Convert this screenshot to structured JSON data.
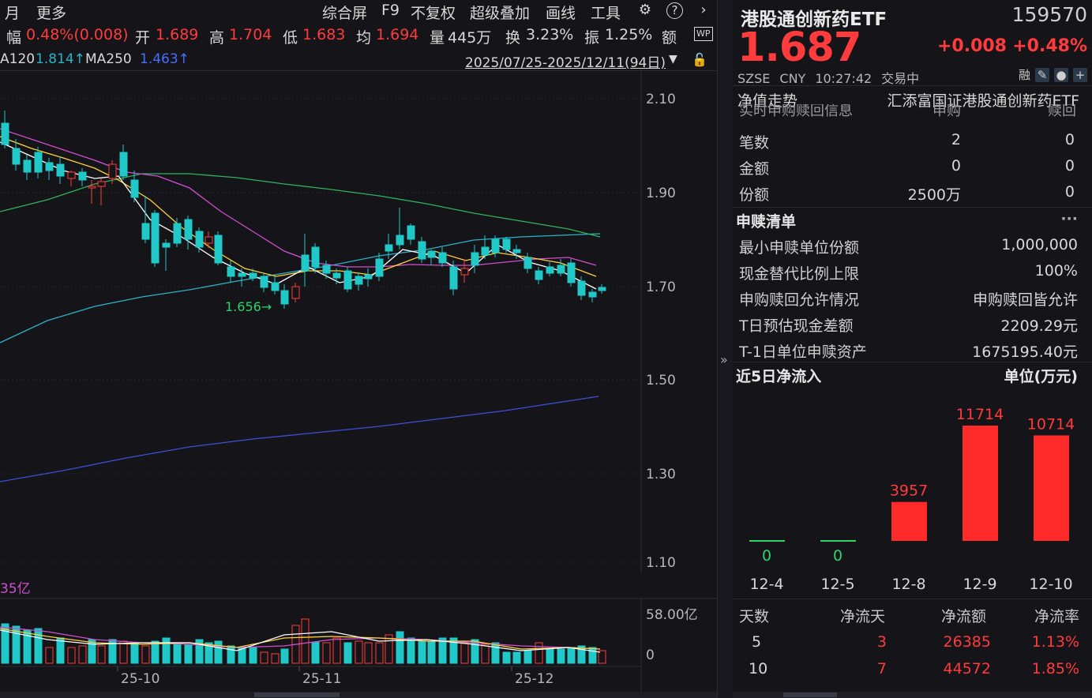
{
  "toolbar": {
    "items": [
      "月",
      "更多",
      "综合屏",
      "F9",
      "不复权",
      "超级叠加",
      "画线",
      "工具"
    ],
    "icons": [
      "gear-icon",
      "help-icon",
      "chevron-right-icon"
    ]
  },
  "quote": {
    "amp_label": "幅",
    "amp_value": "0.48%(0.008)",
    "open_label": "开",
    "open_value": "1.689",
    "high_label": "高",
    "high_value": "1.704",
    "low_label": "低",
    "low_value": "1.683",
    "avg_label": "均",
    "avg_value": "1.694",
    "vol_label": "量",
    "vol_value": "445万",
    "turn_label": "换",
    "turn_value": "3.23%",
    "swing_label": "振",
    "swing_value": "1.25%",
    "amt_label": "额",
    "wp_label": "WP"
  },
  "ma": {
    "ma120_label": "A120",
    "ma120_value": "1.814↑",
    "ma250_label": "MA250",
    "ma250_value": "1.463↑",
    "date_range": "2025/07/25-2025/12/11(94日)"
  },
  "chart": {
    "y_ticks": [
      "2.10",
      "1.90",
      "1.70",
      "1.50",
      "1.30",
      "1.10"
    ],
    "low_annotation": "1.656→",
    "volume_label": "35亿",
    "volume_ticks": [
      "58.00亿",
      "0"
    ],
    "x_ticks": [
      "25-10",
      "25-11",
      "25-12"
    ],
    "colors": {
      "up": "#ff3b3b",
      "down": "#20c8c8",
      "ma5": "#ffffff",
      "ma10": "#ffd23a",
      "ma20": "#d04fd0",
      "ma60": "#2fb35a",
      "ma120": "#2ab3c8",
      "ma250": "#3d4fd8"
    }
  },
  "header": {
    "name": "港股通创新药ETF",
    "code": "159570",
    "price": "1.687",
    "change": "+0.008",
    "change_pct": "+0.48%",
    "exchange": "SZSE",
    "currency": "CNY",
    "time": "10:27:42",
    "status": "交易中",
    "margin_label": "融"
  },
  "nav": {
    "title": "净值走势",
    "value": "汇添富国证港股通创新药ETF"
  },
  "realtime": {
    "partial_title": "实时申购赎回信息",
    "partial_col1": "申购",
    "partial_col2": "赎回",
    "rows": [
      {
        "label": "笔数",
        "buy": "2",
        "sell": "0"
      },
      {
        "label": "金额",
        "buy": "0",
        "sell": "0"
      },
      {
        "label": "份额",
        "buy": "2500万",
        "sell": "0"
      }
    ]
  },
  "redemption_list": {
    "title": "申赎清单",
    "more": "···",
    "rows": [
      {
        "label": "最小申赎单位份额",
        "value": "1,000,000"
      },
      {
        "label": "现金替代比例上限",
        "value": "100%"
      },
      {
        "label": "申购赎回允许情况",
        "value": "申购赎回皆允许"
      },
      {
        "label": "T日预估现金差额",
        "value": "2209.29元"
      },
      {
        "label": "T-1日单位申赎资产",
        "value": "1675195.40元"
      }
    ]
  },
  "flow": {
    "title": "近5日净流入",
    "unit": "单位(万元)",
    "bars": [
      {
        "date": "12-4",
        "value": 0,
        "label": "0"
      },
      {
        "date": "12-5",
        "value": 0,
        "label": "0"
      },
      {
        "date": "12-8",
        "value": 3957,
        "label": "3957"
      },
      {
        "date": "12-9",
        "value": 11714,
        "label": "11714"
      },
      {
        "date": "12-10",
        "value": 10714,
        "label": "10714"
      }
    ]
  },
  "flow_table": {
    "headers": [
      "天数",
      "净流天",
      "净流额",
      "净流率"
    ],
    "rows": [
      {
        "days": "5",
        "flow_days": "3",
        "amount": "26385",
        "rate": "1.13%"
      },
      {
        "days": "10",
        "flow_days": "7",
        "amount": "44572",
        "rate": "1.85%"
      }
    ]
  }
}
